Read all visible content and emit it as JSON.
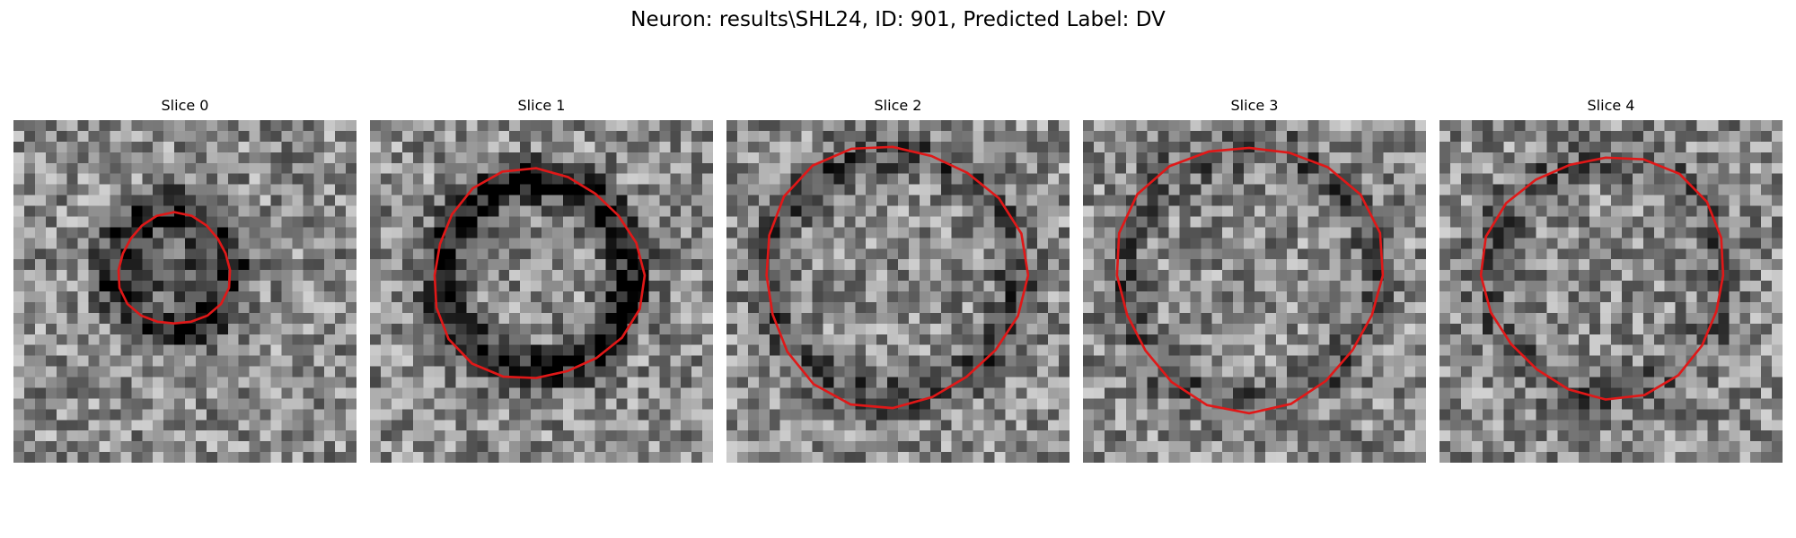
{
  "figure": {
    "title": "Neuron: results\\SHL24, ID: 901, Predicted Label: DV"
  },
  "contour_color": "#e01818",
  "slices": [
    {
      "title": "Slice 0",
      "seed": 11,
      "ring_center": [
        15,
        14
      ],
      "ring_radius": 5.5,
      "ring_strength": 0.42,
      "fill_dark": 0.25,
      "contour_center": [
        15,
        14
      ],
      "contour_radius": 5.2
    },
    {
      "title": "Slice 1",
      "seed": 23,
      "ring_center": [
        15.5,
        14.5
      ],
      "ring_radius": 8.8,
      "ring_strength": 0.48,
      "fill_dark": 0.0,
      "contour_center": [
        15.5,
        14.5
      ],
      "contour_radius": 9.8
    },
    {
      "title": "Slice 2",
      "seed": 37,
      "ring_center": [
        15.5,
        14.5
      ],
      "ring_radius": 11.5,
      "ring_strength": 0.26,
      "fill_dark": 0.0,
      "contour_center": [
        15.5,
        14.5
      ],
      "contour_radius": 12.2
    },
    {
      "title": "Slice 3",
      "seed": 51,
      "ring_center": [
        15.5,
        14.5
      ],
      "ring_radius": 11.8,
      "ring_strength": 0.22,
      "fill_dark": 0.0,
      "contour_center": [
        15.5,
        14.5
      ],
      "contour_radius": 12.4
    },
    {
      "title": "Slice 4",
      "seed": 67,
      "ring_center": [
        15.5,
        14.5
      ],
      "ring_radius": 11.0,
      "ring_strength": 0.2,
      "fill_dark": 0.0,
      "contour_center": [
        15.5,
        14.5
      ],
      "contour_radius": 11.3
    }
  ]
}
